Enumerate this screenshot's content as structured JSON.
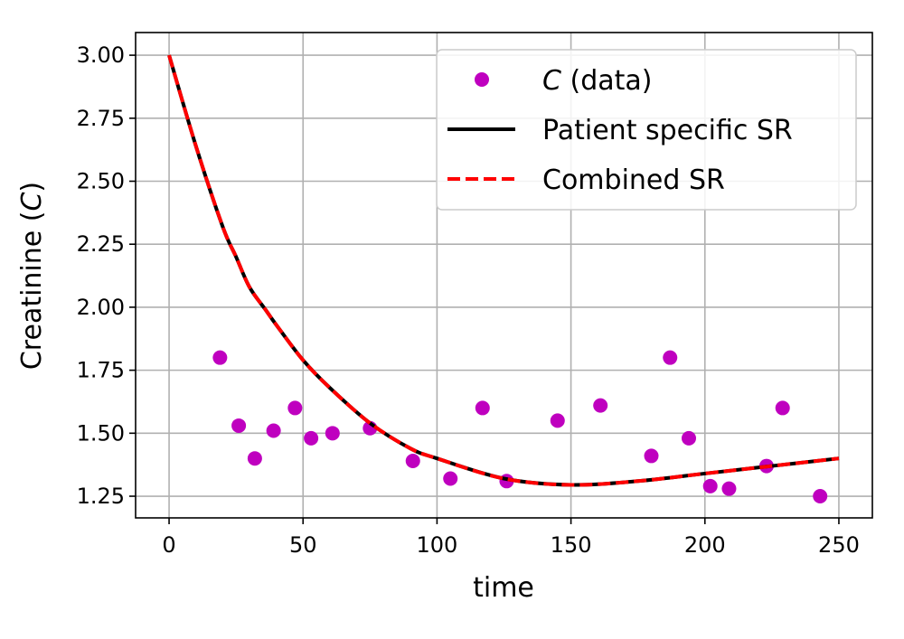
{
  "chart_data": {
    "type": "scatter",
    "xlabel": "time",
    "ylabel_main": "Creatinine (",
    "ylabel_var": "C",
    "ylabel_end": ")",
    "xlim": [
      -12.5,
      262.5
    ],
    "ylim": [
      1.164,
      3.09
    ],
    "xticks": [
      0,
      50,
      100,
      150,
      200,
      250
    ],
    "yticks": [
      "1.25",
      "1.50",
      "1.75",
      "2.00",
      "2.25",
      "2.50",
      "2.75",
      "3.00"
    ],
    "grid": true,
    "legend_placement": "top-right",
    "colors": {
      "data": "#bf00bf",
      "patient": "#000000",
      "combined": "#ff0000"
    },
    "series": [
      {
        "name": "C (data)",
        "name_var": "C",
        "name_rest": " (data)",
        "kind": "scatter",
        "x": [
          19,
          26,
          32,
          39,
          47,
          53,
          61,
          75,
          91,
          105,
          117,
          126,
          145,
          161,
          180,
          187,
          194,
          202,
          209,
          223,
          229,
          243
        ],
        "y": [
          1.8,
          1.53,
          1.4,
          1.51,
          1.6,
          1.48,
          1.5,
          1.52,
          1.39,
          1.32,
          1.6,
          1.31,
          1.55,
          1.61,
          1.41,
          1.8,
          1.48,
          1.29,
          1.28,
          1.37,
          1.6,
          1.25
        ]
      },
      {
        "name": "Patient specific SR",
        "kind": "line",
        "x": [
          0,
          10,
          20,
          25,
          30,
          36,
          40,
          50,
          60,
          75,
          90,
          100,
          125,
          150,
          175,
          200,
          225,
          250
        ],
        "y": [
          3.0,
          2.64,
          2.32,
          2.2,
          2.08,
          1.99,
          1.93,
          1.79,
          1.68,
          1.54,
          1.44,
          1.4,
          1.32,
          1.295,
          1.31,
          1.34,
          1.37,
          1.4
        ]
      },
      {
        "name": "Combined SR",
        "kind": "dashed-line",
        "x": [
          0,
          10,
          20,
          25,
          30,
          36,
          40,
          50,
          60,
          75,
          90,
          100,
          125,
          150,
          175,
          200,
          225,
          250
        ],
        "y": [
          3.0,
          2.64,
          2.32,
          2.2,
          2.08,
          1.99,
          1.93,
          1.79,
          1.68,
          1.54,
          1.44,
          1.4,
          1.32,
          1.295,
          1.31,
          1.34,
          1.37,
          1.4
        ]
      }
    ]
  }
}
